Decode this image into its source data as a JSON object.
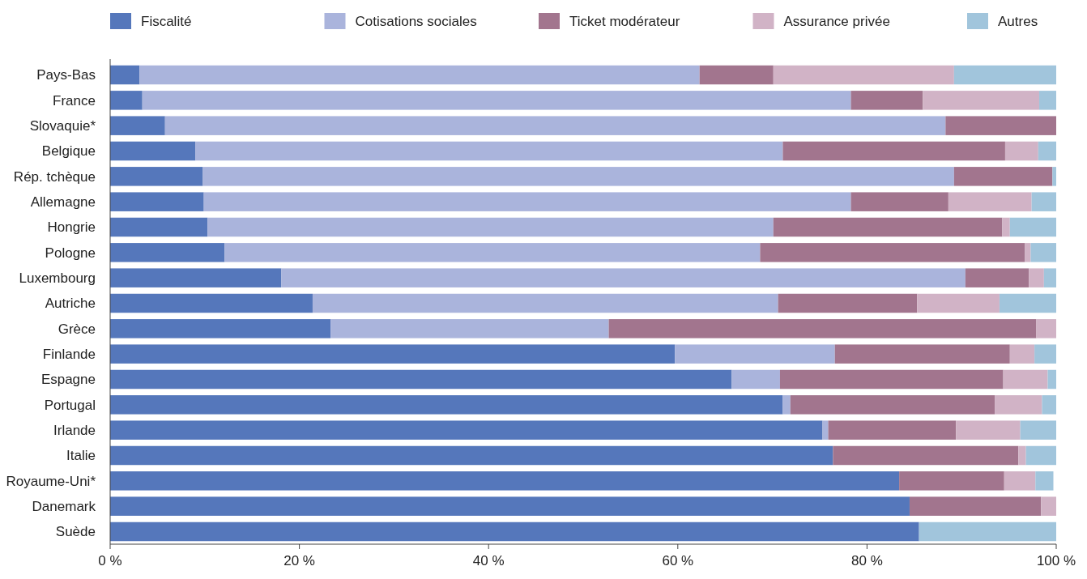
{
  "chart_data": {
    "type": "bar",
    "orientation": "horizontal",
    "stacked": true,
    "categories": [
      "Pays-Bas",
      "France",
      "Slovaquie*",
      "Belgique",
      "Rép. tchèque",
      "Allemagne",
      "Hongrie",
      "Pologne",
      "Luxembourg",
      "Autriche",
      "Grèce",
      "Finlande",
      "Espagne",
      "Portugal",
      "Irlande",
      "Italie",
      "Royaume-Uni*",
      "Danemark",
      "Suède"
    ],
    "series": [
      {
        "name": "Fiscalité",
        "color": "#5577bb",
        "values": [
          3.1,
          3.4,
          5.8,
          9.0,
          9.8,
          9.9,
          10.3,
          12.1,
          18.1,
          21.4,
          23.3,
          59.7,
          65.7,
          71.1,
          75.3,
          76.4,
          83.4,
          84.5,
          85.5
        ]
      },
      {
        "name": "Cotisations sociales",
        "color": "#aab4dc",
        "values": [
          59.2,
          74.9,
          82.5,
          62.1,
          79.4,
          68.4,
          59.8,
          56.6,
          72.3,
          49.2,
          29.4,
          16.9,
          5.1,
          0.8,
          0.6,
          0,
          0,
          0,
          0
        ]
      },
      {
        "name": "Ticket modérateur",
        "color": "#a2758e",
        "values": [
          7.8,
          7.6,
          11.7,
          23.5,
          10.4,
          10.3,
          24.2,
          28.0,
          6.7,
          14.7,
          45.2,
          18.5,
          23.6,
          21.6,
          13.5,
          19.6,
          11.1,
          13.9,
          0
        ]
      },
      {
        "name": "Assurance privée",
        "color": "#d1b3c6",
        "values": [
          19.1,
          12.3,
          0,
          3.5,
          0,
          8.8,
          0.8,
          0.6,
          1.6,
          8.7,
          2.1,
          2.6,
          4.7,
          5.0,
          6.8,
          0.8,
          3.3,
          1.6,
          0
        ]
      },
      {
        "name": "Autres",
        "color": "#a1c5dc",
        "values": [
          10.8,
          1.8,
          0,
          1.9,
          0.4,
          2.6,
          4.9,
          2.7,
          1.3,
          6.0,
          0,
          2.3,
          0.9,
          1.5,
          3.8,
          3.2,
          1.9,
          0,
          14.5
        ]
      }
    ],
    "xlim": [
      0,
      100
    ],
    "xticks": [
      {
        "value": 0,
        "label": "0 %"
      },
      {
        "value": 20,
        "label": "20 %"
      },
      {
        "value": 40,
        "label": "40 %"
      },
      {
        "value": 60,
        "label": "60 %"
      },
      {
        "value": 80,
        "label": "80 %"
      },
      {
        "value": 100,
        "label": "100 %"
      }
    ],
    "legend": "top"
  }
}
